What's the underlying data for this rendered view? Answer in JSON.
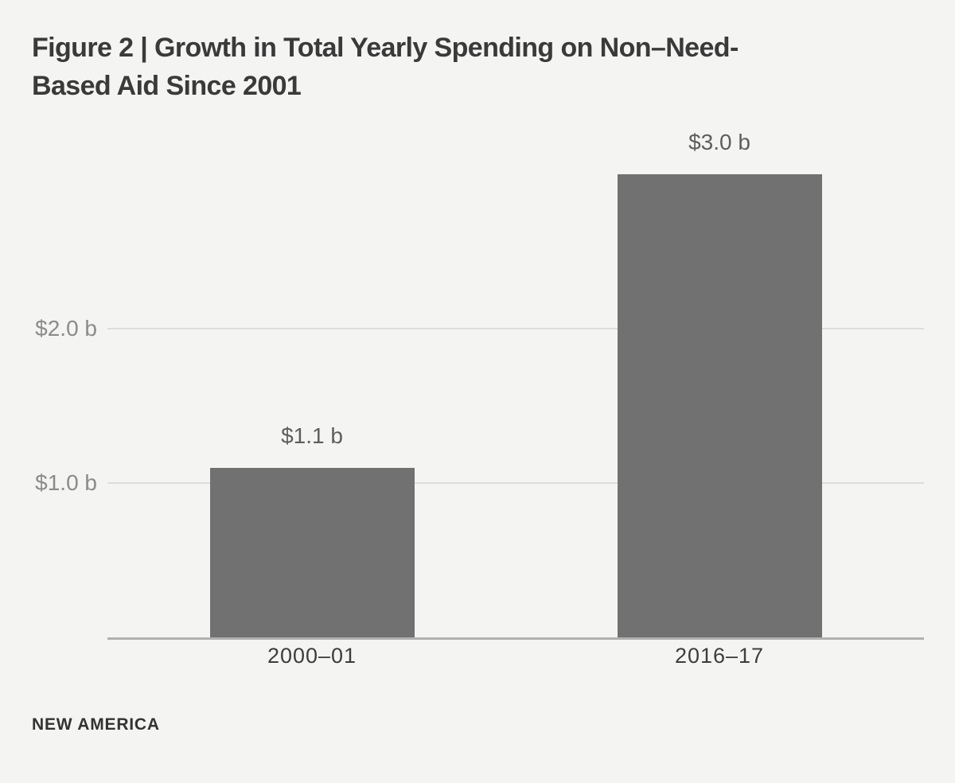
{
  "title": {
    "line1": "Figure 2 | Growth in Total Yearly Spending on Non–Need-",
    "line2": "Based Aid Since 2001"
  },
  "footer": {
    "brand": "NEW AMERICA"
  },
  "chart_data": {
    "type": "bar",
    "title": "Figure 2 | Growth in Total Yearly Spending on Non–Need-Based Aid Since 2001",
    "categories": [
      "2000–01",
      "2016–17"
    ],
    "values": [
      1.1,
      3.0
    ],
    "value_labels": [
      "$1.1 b",
      "$3.0 b"
    ],
    "yticks": [
      {
        "value": 1.0,
        "label": "$1.0 b"
      },
      {
        "value": 2.0,
        "label": "$2.0 b"
      }
    ],
    "ylim": [
      0,
      3.2
    ],
    "grid": "horizontal-gridlines-at-yticks",
    "legend": "none",
    "xlabel": "",
    "ylabel": "",
    "colors": {
      "background": "#f4f4f2",
      "bar": "#717171",
      "gridline": "#dddddd",
      "axis_line": "#b1b1b1",
      "title_text": "#3a3a3a",
      "category_text": "#3d3d3d",
      "ytick_text": "#8b8b8b",
      "value_label_text": "#5e5e5e",
      "footer_text": "#333333"
    }
  }
}
